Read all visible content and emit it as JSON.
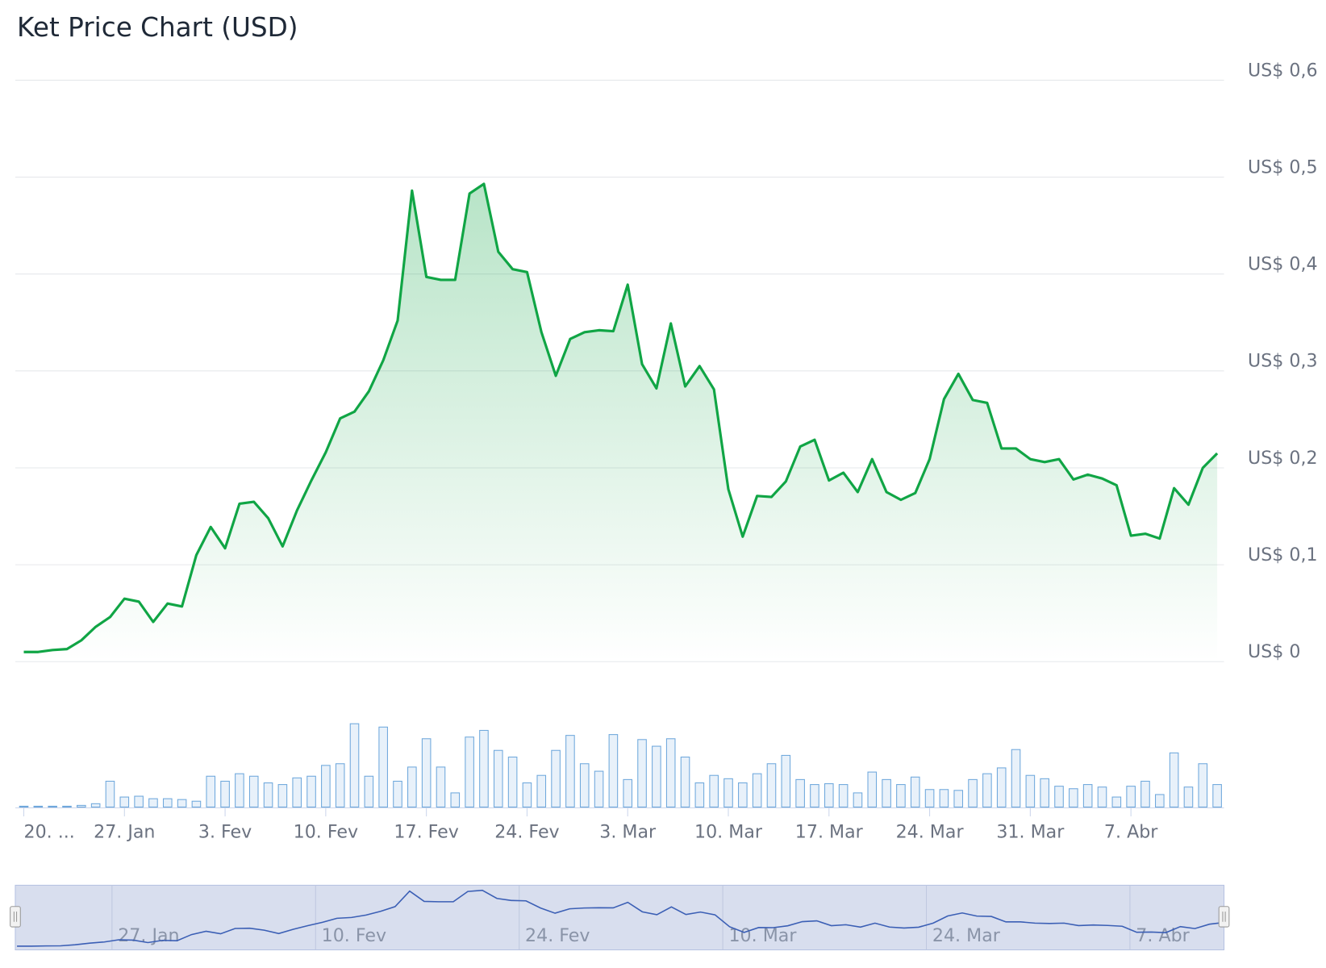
{
  "chart_data": {
    "type": "line",
    "title": "Ket Price Chart (USD)",
    "x": [
      "20. Jan",
      "21. Jan",
      "22. Jan",
      "23. Jan",
      "24. Jan",
      "25. Jan",
      "26. Jan",
      "27. Jan",
      "28. Jan",
      "29. Jan",
      "30. Jan",
      "31. Jan",
      "1. Fev",
      "2. Fev",
      "3. Fev",
      "4. Fev",
      "5. Fev",
      "6. Fev",
      "7. Fev",
      "8. Fev",
      "9. Fev",
      "10. Fev",
      "11. Fev",
      "12. Fev",
      "13. Fev",
      "14. Fev",
      "15. Fev",
      "16. Fev",
      "17. Fev",
      "18. Fev",
      "19. Fev",
      "20. Fev",
      "21. Fev",
      "22. Fev",
      "23. Fev",
      "24. Fev",
      "25. Fev",
      "26. Fev",
      "27. Fev",
      "28. Fev",
      "1. Mar",
      "2. Mar",
      "3. Mar",
      "4. Mar",
      "5. Mar",
      "6. Mar",
      "7. Mar",
      "8. Mar",
      "9. Mar",
      "10. Mar",
      "11. Mar",
      "12. Mar",
      "13. Mar",
      "14. Mar",
      "15. Mar",
      "16. Mar",
      "17. Mar",
      "18. Mar",
      "19. Mar",
      "20. Mar",
      "21. Mar",
      "22. Mar",
      "23. Mar",
      "24. Mar",
      "25. Mar",
      "26. Mar",
      "27. Mar",
      "28. Mar",
      "29. Mar",
      "30. Mar",
      "31. Mar",
      "1. Abr",
      "2. Abr",
      "3. Abr",
      "4. Abr",
      "5. Abr",
      "6. Abr",
      "7. Abr",
      "8. Abr",
      "9. Abr",
      "10. Abr",
      "11. Abr",
      "12. Abr",
      "13. Abr"
    ],
    "values": [
      0.01,
      0.01,
      0.012,
      0.013,
      0.022,
      0.036,
      0.046,
      0.065,
      0.062,
      0.041,
      0.06,
      0.057,
      0.11,
      0.139,
      0.117,
      0.163,
      0.165,
      0.148,
      0.119,
      0.156,
      0.187,
      0.216,
      0.251,
      0.258,
      0.279,
      0.311,
      0.352,
      0.486,
      0.397,
      0.394,
      0.394,
      0.483,
      0.493,
      0.423,
      0.405,
      0.402,
      0.34,
      0.295,
      0.333,
      0.34,
      0.342,
      0.341,
      0.389,
      0.307,
      0.282,
      0.349,
      0.284,
      0.305,
      0.281,
      0.178,
      0.129,
      0.171,
      0.17,
      0.186,
      0.222,
      0.229,
      0.187,
      0.195,
      0.175,
      0.209,
      0.175,
      0.167,
      0.174,
      0.209,
      0.271,
      0.297,
      0.27,
      0.267,
      0.22,
      0.22,
      0.209,
      0.206,
      0.209,
      0.188,
      0.193,
      0.189,
      0.182,
      0.13,
      0.132,
      0.127,
      0.179,
      0.162,
      0.2,
      0.215
    ],
    "color": "#10a545",
    "ylim": [
      0,
      0.6
    ],
    "yticks": [
      {
        "value": 0,
        "label": "US$ 0"
      },
      {
        "value": 0.1,
        "label": "US$ 0,1"
      },
      {
        "value": 0.2,
        "label": "US$ 0,2"
      },
      {
        "value": 0.3,
        "label": "US$ 0,3"
      },
      {
        "value": 0.4,
        "label": "US$ 0,4"
      },
      {
        "value": 0.5,
        "label": "US$ 0,5"
      },
      {
        "value": 0.6,
        "label": "US$ 0,6"
      }
    ],
    "xticks": [
      {
        "value": 0,
        "label": "20. ..."
      },
      {
        "value": 7,
        "label": "27. Jan"
      },
      {
        "value": 14,
        "label": "3. Fev"
      },
      {
        "value": 21,
        "label": "10. Fev"
      },
      {
        "value": 28,
        "label": "17. Fev"
      },
      {
        "value": 35,
        "label": "24. Fev"
      },
      {
        "value": 42,
        "label": "3. Mar"
      },
      {
        "value": 49,
        "label": "10. Mar"
      },
      {
        "value": 56,
        "label": "17. Mar"
      },
      {
        "value": 63,
        "label": "24. Mar"
      },
      {
        "value": 70,
        "label": "31. Mar"
      },
      {
        "value": 77,
        "label": "7. Abr"
      }
    ],
    "grid": true,
    "volume": {
      "color": "#6fa8dc",
      "ylim": [
        0,
        100
      ],
      "values": [
        1,
        1,
        1,
        1,
        2,
        4,
        31,
        12,
        13,
        10,
        10,
        9,
        7,
        37,
        31,
        40,
        37,
        29,
        27,
        35,
        37,
        50,
        52,
        100,
        37,
        96,
        31,
        48,
        82,
        48,
        17,
        84,
        92,
        68,
        60,
        29,
        38,
        68,
        86,
        52,
        43,
        87,
        33,
        81,
        73,
        82,
        60,
        29,
        38,
        34,
        29,
        40,
        52,
        62,
        33,
        27,
        28,
        27,
        17,
        42,
        33,
        27,
        36,
        21,
        21,
        20,
        33,
        40,
        47,
        69,
        38,
        34,
        25,
        22,
        27,
        24,
        12,
        25,
        31,
        15,
        65,
        24,
        52,
        27
      ]
    },
    "navigator": {
      "color": "#3b5fb5",
      "xticks": [
        {
          "value": 7,
          "label": "27. Jan"
        },
        {
          "value": 21,
          "label": "10. Fev"
        },
        {
          "value": 35,
          "label": "24. Fev"
        },
        {
          "value": 49,
          "label": "10. Mar"
        },
        {
          "value": 63,
          "label": "24. Mar"
        },
        {
          "value": 77,
          "label": "7. Abr"
        }
      ]
    }
  }
}
